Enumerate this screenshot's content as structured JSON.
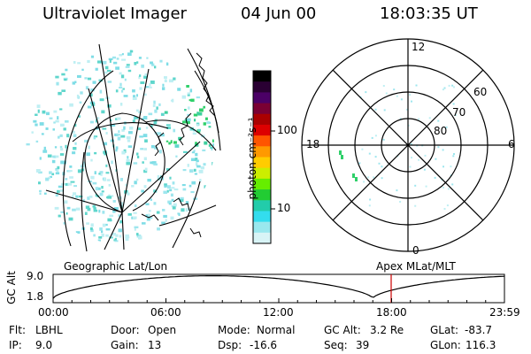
{
  "header": {
    "instrument": "Ultraviolet Imager",
    "date": "04 Jun 00",
    "time": "18:03:35 UT"
  },
  "colorbar": {
    "unit_label": "photon cm⁻²s⁻¹",
    "ticks": [
      {
        "label": "100",
        "value": 100
      },
      {
        "label": "10",
        "value": 10
      }
    ],
    "colors": [
      "#000000",
      "#2a0033",
      "#4b0066",
      "#7a0033",
      "#aa0000",
      "#dd0000",
      "#ff5500",
      "#ff9900",
      "#ffcc00",
      "#ccee00",
      "#66ee00",
      "#22cc33",
      "#22ccaa",
      "#33ddee",
      "#99e8ee",
      "#d8f4f6"
    ]
  },
  "left_panel": {
    "label": "Geographic Lat/Lon"
  },
  "right_panel": {
    "label": "Apex MLat/MLT",
    "mlt_labels": {
      "top": "12",
      "right": "6",
      "bottom": "0",
      "left": "18"
    },
    "mlat_labels": [
      "60",
      "70",
      "80"
    ]
  },
  "altitude_plot": {
    "ylabel": "GC Alt",
    "yticks": [
      "9.0",
      "1.8"
    ],
    "xticks": [
      "00:00",
      "06:00",
      "12:00",
      "18:00",
      "23:59"
    ],
    "current_time_marker_color": "#cc0000"
  },
  "footer": {
    "rows": [
      [
        {
          "label": "Flt:",
          "value": "LBHL"
        },
        {
          "label": "Door:",
          "value": "Open"
        },
        {
          "label": "Mode:",
          "value": "Normal"
        },
        {
          "label": "GC Alt:",
          "value": "3.2 Re"
        },
        {
          "label": "GLat:",
          "value": "-83.7"
        }
      ],
      [
        {
          "label": "IP:",
          "value": "9.0"
        },
        {
          "label": "Gain:",
          "value": "13"
        },
        {
          "label": "Dsp:",
          "value": "-16.6"
        },
        {
          "label": "Seq:",
          "value": "39"
        },
        {
          "label": "GLon:",
          "value": "116.3"
        }
      ]
    ]
  }
}
